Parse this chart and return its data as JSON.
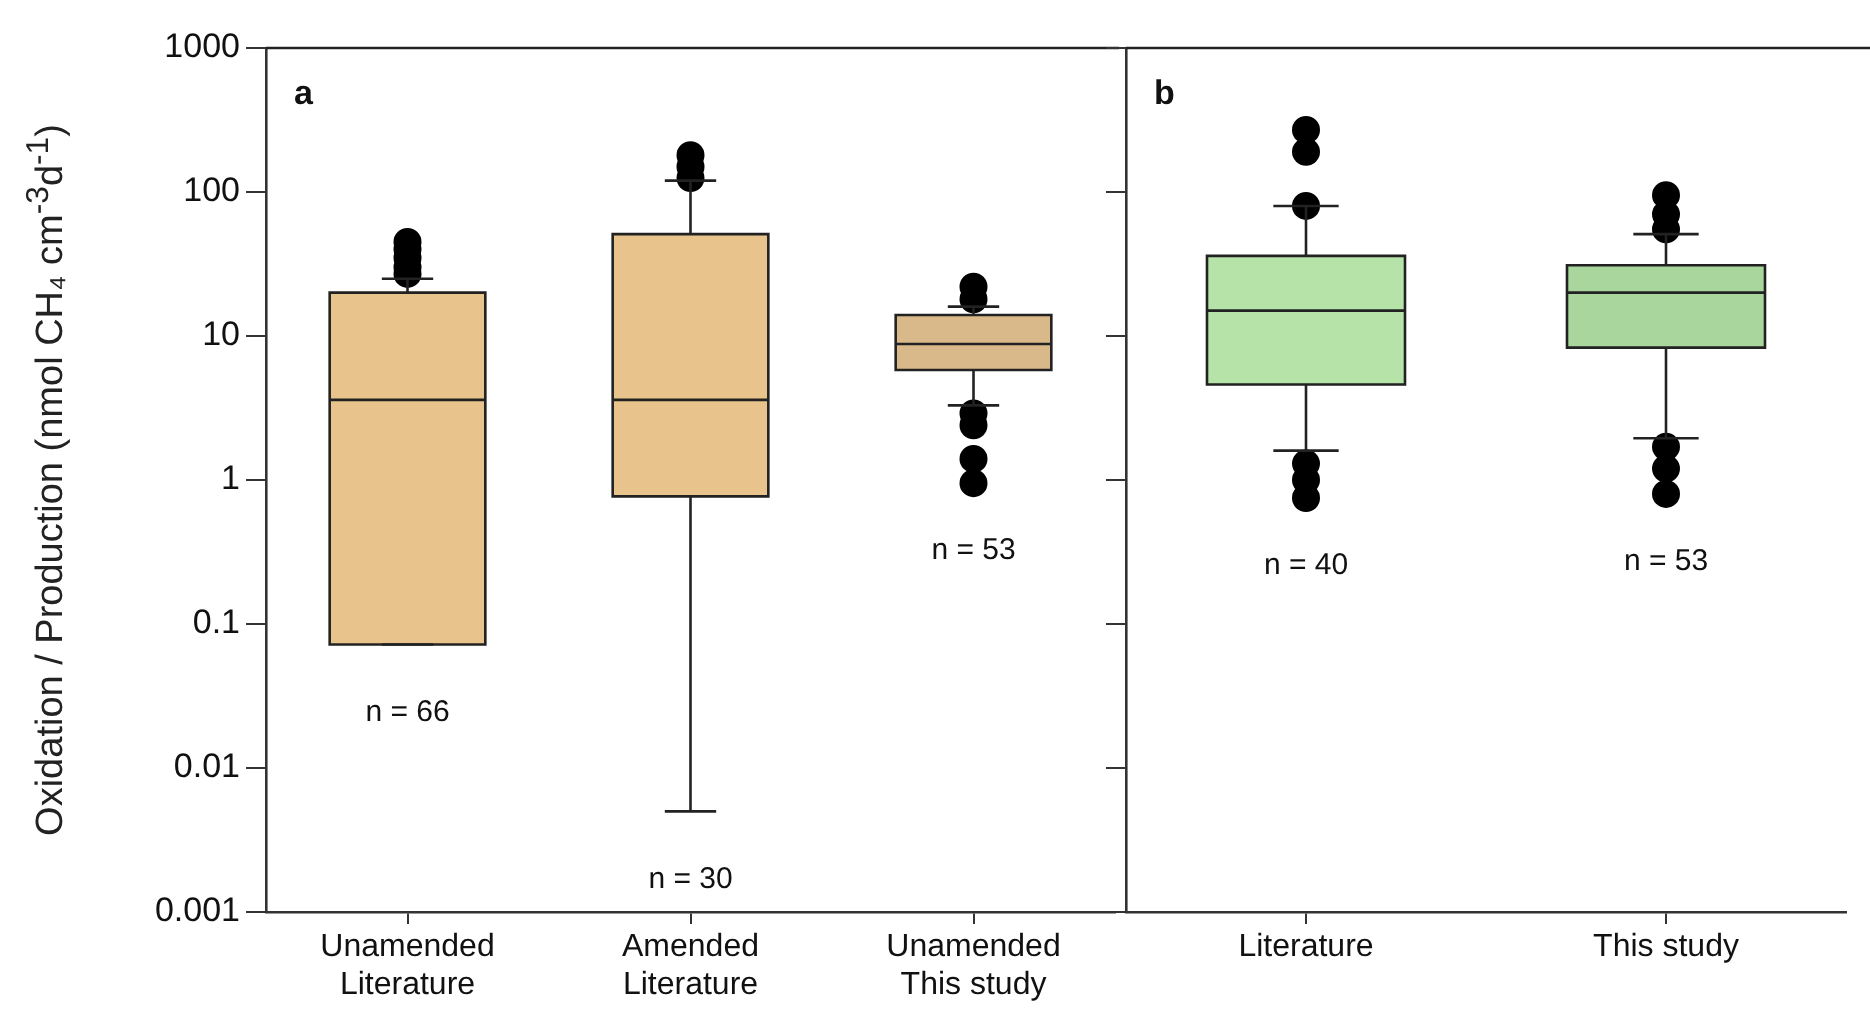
{
  "chart_data": [
    {
      "type": "box",
      "title": "a",
      "ylabel": "Oxidation / Production (nmol CH₄ cm$^{-3}$d$^{-1}$)",
      "categories": [
        "Unamended\nLiterature",
        "Amended\nLiterature",
        "Unamended\nThis study"
      ],
      "colors": [
        "#e8c48c",
        "#e8c48c",
        "#d9b889"
      ],
      "boxes": [
        {
          "low": 0.072,
          "q1": 0.072,
          "median": 3.6,
          "q3": 20,
          "high": 25,
          "outliers": [
            27,
            30,
            35,
            40,
            45
          ]
        },
        {
          "low": 0.005,
          "q1": 0.77,
          "median": 3.6,
          "q3": 51,
          "high": 120,
          "outliers": [
            125,
            150,
            180
          ]
        },
        {
          "low": 3.3,
          "q1": 5.8,
          "median": 8.8,
          "q3": 14,
          "high": 16,
          "outliers": [
            0.95,
            1.4,
            2.4,
            2.9,
            18,
            22
          ]
        }
      ],
      "ylim": [
        0.001,
        1000
      ],
      "yticks": [
        0.001,
        0.01,
        0.1,
        1,
        10,
        100,
        1000
      ],
      "log": true,
      "grid": false,
      "legend": false,
      "marker": "circle",
      "annotations": [
        "n = 66",
        "n = 30",
        "n = 53"
      ]
    },
    {
      "type": "box",
      "title": "b",
      "categories": [
        "Literature",
        "This study"
      ],
      "colors": [
        "#b5e3a8",
        "#a9d69c"
      ],
      "boxes": [
        {
          "low": 1.6,
          "q1": 4.6,
          "median": 15,
          "q3": 36,
          "high": 80,
          "outliers": [
            0.75,
            1.0,
            1.3,
            80,
            190,
            270
          ]
        },
        {
          "low": 1.95,
          "q1": 8.3,
          "median": 20,
          "q3": 31,
          "high": 51,
          "outliers": [
            0.8,
            1.2,
            1.7,
            55,
            70,
            95
          ]
        }
      ],
      "ylim": [
        0.001,
        1000
      ],
      "yticks": [
        0.001,
        0.01,
        0.1,
        1,
        10,
        100,
        1000
      ],
      "log": true,
      "grid": false,
      "legend": false,
      "marker": "circle",
      "tick_labels": "x",
      "annotations": [
        "n = 40",
        "n = 53"
      ]
    }
  ]
}
